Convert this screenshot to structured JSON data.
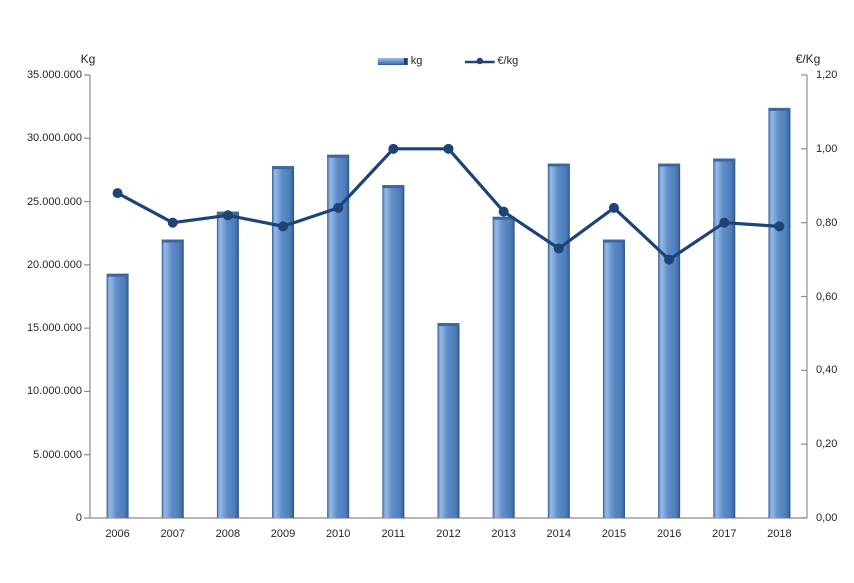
{
  "chart_data": {
    "type": "bar+line combo",
    "categories": [
      "2006",
      "2007",
      "2008",
      "2009",
      "2010",
      "2011",
      "2012",
      "2013",
      "2014",
      "2015",
      "2016",
      "2017",
      "2018"
    ],
    "series": [
      {
        "name": "kg",
        "type": "bar",
        "axis": "left",
        "values": [
          19300000,
          22000000,
          24200000,
          27800000,
          28700000,
          26300000,
          15400000,
          23800000,
          28000000,
          22000000,
          28000000,
          28400000,
          32400000
        ]
      },
      {
        "name": "€/kg",
        "type": "line",
        "axis": "right",
        "values": [
          0.88,
          0.8,
          0.82,
          0.79,
          0.84,
          1.0,
          1.0,
          0.83,
          0.73,
          0.84,
          0.7,
          0.8,
          0.79
        ]
      }
    ],
    "left_axis": {
      "title": "Kg",
      "min": 0,
      "max": 35000000,
      "tick_step": 5000000,
      "tick_labels": [
        "0",
        "5.000.000",
        "10.000.000",
        "15.000.000",
        "20.000.000",
        "25.000.000",
        "30.000.000",
        "35.000.000"
      ]
    },
    "right_axis": {
      "title": "€/Kg",
      "min": 0,
      "max": 1.2,
      "tick_step": 0.2,
      "tick_labels": [
        "0,00",
        "0,20",
        "0,40",
        "0,60",
        "0,80",
        "1,00",
        "1,20"
      ]
    },
    "legend_position": "top-center",
    "grid": false,
    "colors": {
      "bar_fill": "#5E8DC8",
      "bar_highlight": "#96BAE6",
      "bar_edge": "#2F5588",
      "bar_cap": "#3D689F",
      "line": "#1E4377",
      "axis_line": "#8C8C8C",
      "text": "#262626"
    }
  }
}
